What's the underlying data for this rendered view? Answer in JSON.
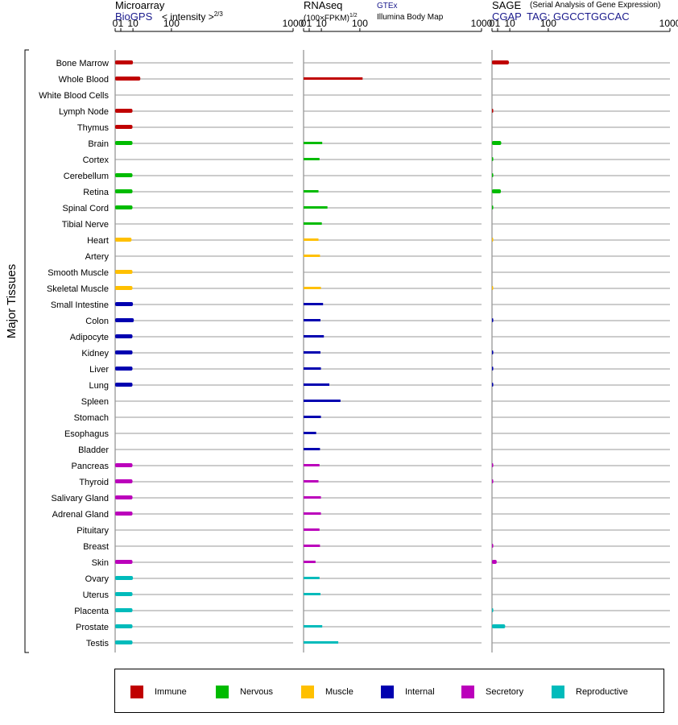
{
  "headers": {
    "microarray": {
      "title": "Microarray",
      "source": "BioGPS",
      "scale_label": "< intensity >",
      "scale_exponent": "2/3"
    },
    "rnaseq": {
      "title": "RNAseq",
      "scale_label": "(100×FPKM)",
      "scale_exponent": "1/2",
      "source_1": "GTEx",
      "source_2": "Illumina Body Map"
    },
    "sage": {
      "title": "SAGE",
      "subtitle": "(Serial Analysis of Gene Expression)",
      "source": "CGAP",
      "tag": "TAG: GGCCTGGCAC"
    }
  },
  "y_group_label": "Major Tissues",
  "colors": {
    "Immune": "#c00000",
    "Nervous": "#00bb00",
    "Muscle": "#ffc000",
    "Internal": "#0000b0",
    "Secretory": "#bb00bb",
    "Reproductive": "#00bbbb"
  },
  "legend": [
    "Immune",
    "Nervous",
    "Muscle",
    "Internal",
    "Secretory",
    "Reproductive"
  ],
  "chart_data": [
    {
      "type": "bar",
      "orientation": "horizontal",
      "panel": "Microarray",
      "x_scale": "intensity^(2/3)",
      "xlim": [
        0,
        1000
      ],
      "xticks": [
        "0",
        "1",
        "10",
        "100",
        "1000"
      ],
      "categories": [
        "Bone Marrow",
        "Whole Blood",
        "White Blood Cells",
        "Lymph Node",
        "Thymus",
        "Brain",
        "Cortex",
        "Cerebellum",
        "Retina",
        "Spinal Cord",
        "Tibial Nerve",
        "Heart",
        "Artery",
        "Smooth Muscle",
        "Skeletal Muscle",
        "Small Intestine",
        "Colon",
        "Adipocyte",
        "Kidney",
        "Liver",
        "Lung",
        "Spleen",
        "Stomach",
        "Esophagus",
        "Bladder",
        "Pancreas",
        "Thyroid",
        "Salivary Gland",
        "Adrenal Gland",
        "Pituitary",
        "Breast",
        "Skin",
        "Ovary",
        "Uterus",
        "Placenta",
        "Prostate",
        "Testis"
      ],
      "groups": [
        "Immune",
        "Immune",
        "Immune",
        "Immune",
        "Immune",
        "Nervous",
        "Nervous",
        "Nervous",
        "Nervous",
        "Nervous",
        "Nervous",
        "Muscle",
        "Muscle",
        "Muscle",
        "Muscle",
        "Internal",
        "Internal",
        "Internal",
        "Internal",
        "Internal",
        "Internal",
        "Internal",
        "Internal",
        "Internal",
        "Internal",
        "Secretory",
        "Secretory",
        "Secretory",
        "Secretory",
        "Secretory",
        "Secretory",
        "Secretory",
        "Reproductive",
        "Reproductive",
        "Reproductive",
        "Reproductive",
        "Reproductive"
      ],
      "values": [
        10,
        20,
        null,
        9.5,
        9.5,
        9.5,
        null,
        9.5,
        9.5,
        9.5,
        null,
        8.5,
        null,
        9.5,
        9.5,
        10,
        11,
        9.5,
        9.5,
        9.5,
        9.5,
        null,
        null,
        null,
        null,
        9.5,
        9.5,
        9.5,
        9.5,
        null,
        null,
        9.5,
        10,
        9.5,
        9.5,
        9.5,
        9.5
      ]
    },
    {
      "type": "bar",
      "orientation": "horizontal",
      "panel": "RNAseq",
      "x_scale": "(100×FPKM)^(1/2)",
      "xlim": [
        0,
        1000
      ],
      "xticks": [
        "0",
        "1",
        "10",
        "100",
        "1000"
      ],
      "values": [
        null,
        110,
        null,
        null,
        null,
        11,
        8,
        null,
        7,
        18,
        10.5,
        7,
        8.5,
        null,
        9.5,
        12,
        9,
        13,
        9,
        9.5,
        21,
        43,
        9.5,
        5,
        8.5,
        8,
        7,
        9.5,
        9.5,
        8,
        8.5,
        4.5,
        8,
        9,
        null,
        11,
        38
      ]
    },
    {
      "type": "bar",
      "orientation": "horizontal",
      "panel": "SAGE",
      "xlim": [
        0,
        1000
      ],
      "xticks": [
        "0",
        "1",
        "10",
        "100",
        "1000"
      ],
      "values": [
        9,
        null,
        null,
        0.05,
        null,
        2.7,
        0.05,
        0.05,
        2.5,
        0.05,
        null,
        0.01,
        null,
        null,
        0.01,
        null,
        0.05,
        null,
        0.05,
        0.05,
        0.05,
        null,
        null,
        null,
        null,
        0.05,
        0.05,
        null,
        null,
        null,
        0.05,
        0.7,
        null,
        null,
        0.05,
        5.5,
        null
      ]
    }
  ]
}
